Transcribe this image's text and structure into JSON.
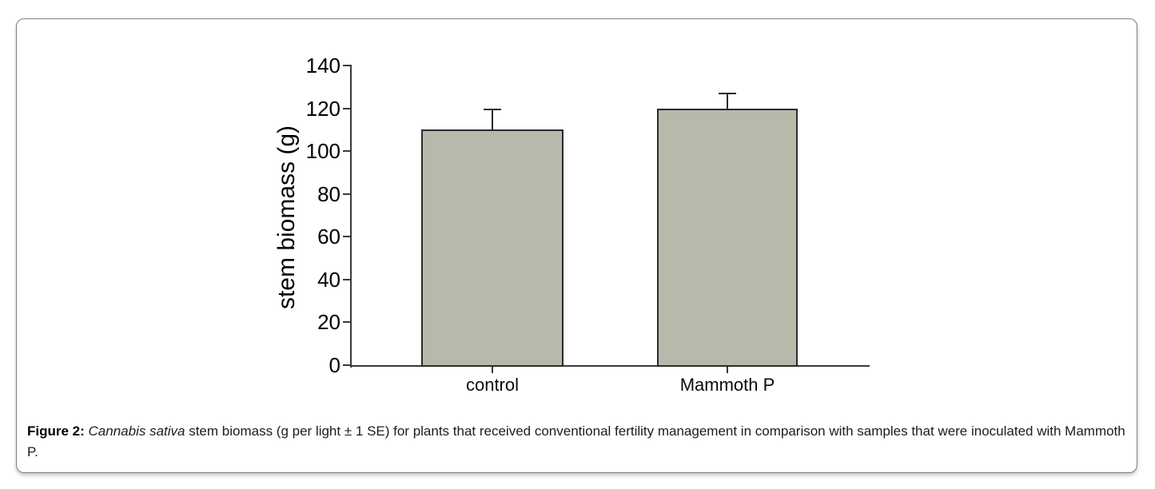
{
  "figure": {
    "caption": {
      "label": "Figure 2: ",
      "species": "Cannabis sativa",
      "body": " stem biomass (g per light ± 1 SE) for plants that received conventional fertility management in comparison with samples that were inoculated with Mammoth P."
    }
  },
  "chart_data": {
    "type": "bar",
    "title": "",
    "categories": [
      "control",
      "Mammoth P"
    ],
    "series": [
      {
        "name": "stem biomass",
        "values": [
          110,
          120
        ],
        "se": [
          9.5,
          7
        ]
      }
    ],
    "error_bars": "+1 SE",
    "xlabel": "",
    "ylabel": "stem biomass (g)",
    "ylim": [
      0,
      140
    ],
    "yticks": [
      0,
      20,
      40,
      60,
      80,
      100,
      120,
      140
    ],
    "grid": false,
    "legend": false,
    "bar_fill": "#b8b9aa",
    "bar_border": "#2b2b2b",
    "axis_color": "#3a3a3a"
  }
}
